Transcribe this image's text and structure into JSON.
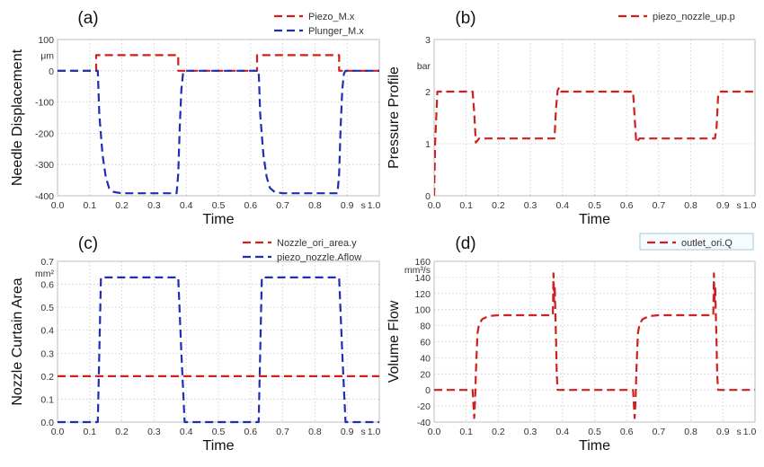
{
  "chart_data": [
    {
      "type": "line",
      "panel_label": "(a)",
      "xlabel": "Time",
      "ylabel": "Needle Displacement",
      "x_unit": "s",
      "y_unit": "μm",
      "xlim": [
        0,
        1
      ],
      "ylim": [
        -400,
        100
      ],
      "xticks": [
        "0.0",
        "0.1",
        "0.2",
        "0.3",
        "0.4",
        "0.5",
        "0.6",
        "0.7",
        "0.8",
        "0.9",
        "1.0"
      ],
      "yticks": [
        "100",
        "0",
        "-100",
        "-200",
        "-300",
        "-400"
      ],
      "ytick_values": [
        100,
        0,
        -100,
        -200,
        -300,
        -400
      ],
      "grid": true,
      "legend_position": "top-right",
      "legend_boxed": false,
      "series": [
        {
          "name": "Piezo_M.x",
          "color": "#d01f1f",
          "x": [
            0,
            0.12,
            0.12,
            0.375,
            0.375,
            0.62,
            0.62,
            0.875,
            0.875,
            1.0
          ],
          "y": [
            0,
            0,
            50,
            50,
            0,
            0,
            50,
            50,
            0,
            0
          ]
        },
        {
          "name": "Plunger_M.x",
          "color": "#1c2fb5",
          "x": [
            0,
            0.125,
            0.13,
            0.14,
            0.15,
            0.16,
            0.175,
            0.2,
            0.37,
            0.375,
            0.38,
            0.385,
            0.39,
            0.395,
            0.4,
            0.625,
            0.63,
            0.64,
            0.65,
            0.66,
            0.675,
            0.7,
            0.87,
            0.875,
            0.88,
            0.885,
            0.89,
            0.895,
            0.9,
            1.0
          ],
          "y": [
            0,
            0,
            -140,
            -270,
            -340,
            -375,
            -388,
            -392,
            -392,
            -330,
            -180,
            -60,
            -10,
            0,
            0,
            0,
            -140,
            -270,
            -340,
            -375,
            -388,
            -392,
            -392,
            -330,
            -180,
            -60,
            -10,
            0,
            0,
            0
          ]
        }
      ]
    },
    {
      "type": "line",
      "panel_label": "(b)",
      "xlabel": "Time",
      "ylabel": "Pressure Profile",
      "x_unit": "s",
      "y_unit": "bar",
      "xlim": [
        0,
        1
      ],
      "ylim": [
        0,
        3
      ],
      "xticks": [
        "0.0",
        "0.1",
        "0.2",
        "0.3",
        "0.4",
        "0.5",
        "0.6",
        "0.7",
        "0.8",
        "0.9",
        "1.0"
      ],
      "yticks": [
        "3",
        "2",
        "1",
        "0"
      ],
      "ytick_values": [
        3,
        2,
        1,
        0
      ],
      "grid": true,
      "legend_position": "top-right",
      "legend_boxed": false,
      "series": [
        {
          "name": "piezo_nozzle_up.p",
          "color": "#d01f1f",
          "x": [
            0,
            0.003,
            0.01,
            0.12,
            0.125,
            0.13,
            0.14,
            0.2,
            0.375,
            0.38,
            0.385,
            0.39,
            0.395,
            0.4,
            0.62,
            0.625,
            0.63,
            0.64,
            0.7,
            0.875,
            0.88,
            0.885,
            0.89,
            1.0
          ],
          "y": [
            0,
            1.0,
            2.0,
            2.0,
            1.6,
            1.02,
            1.1,
            1.1,
            1.1,
            1.7,
            2.02,
            2.08,
            2.0,
            2.0,
            2.0,
            1.5,
            1.02,
            1.1,
            1.1,
            1.1,
            1.3,
            1.9,
            2.0,
            2.0
          ]
        }
      ]
    },
    {
      "type": "line",
      "panel_label": "(c)",
      "xlabel": "Time",
      "ylabel": "Nozzle Curtain Area",
      "x_unit": "s",
      "y_unit": "mm²",
      "xlim": [
        0,
        1
      ],
      "ylim": [
        0,
        0.7
      ],
      "xticks": [
        "0.0",
        "0.1",
        "0.2",
        "0.3",
        "0.4",
        "0.5",
        "0.6",
        "0.7",
        "0.8",
        "0.9",
        "1.0"
      ],
      "yticks": [
        "0.7",
        "0.6",
        "0.5",
        "0.4",
        "0.3",
        "0.2",
        "0.1",
        "0.0"
      ],
      "ytick_values": [
        0.7,
        0.6,
        0.5,
        0.4,
        0.3,
        0.2,
        0.1,
        0.0
      ],
      "grid": true,
      "legend_position": "top-right",
      "legend_boxed": false,
      "series": [
        {
          "name": "Nozzle_ori_area.y",
          "color": "#d01f1f",
          "x": [
            0,
            1.0
          ],
          "y": [
            0.2,
            0.2
          ]
        },
        {
          "name": "piezo_nozzle.Aflow",
          "color": "#1c2fb5",
          "x": [
            0,
            0.125,
            0.135,
            0.375,
            0.385,
            0.395,
            0.625,
            0.635,
            0.875,
            0.885,
            0.895,
            1.0
          ],
          "y": [
            0,
            0,
            0.63,
            0.63,
            0.3,
            0,
            0,
            0.63,
            0.63,
            0.3,
            0,
            0
          ]
        }
      ]
    },
    {
      "type": "line",
      "panel_label": "(d)",
      "xlabel": "Time",
      "ylabel": "Volume Flow",
      "x_unit": "s",
      "y_unit": "mm³/s",
      "xlim": [
        0,
        1
      ],
      "ylim": [
        -40,
        160
      ],
      "xticks": [
        "0.0",
        "0.1",
        "0.2",
        "0.3",
        "0.4",
        "0.5",
        "0.6",
        "0.7",
        "0.8",
        "0.9",
        "1.0"
      ],
      "yticks": [
        "160",
        "140",
        "120",
        "100",
        "80",
        "60",
        "40",
        "20",
        "0",
        "-20",
        "-40"
      ],
      "ytick_values": [
        160,
        140,
        120,
        100,
        80,
        60,
        40,
        20,
        0,
        -20,
        -40
      ],
      "grid": true,
      "legend_position": "top-right",
      "legend_boxed": true,
      "series": [
        {
          "name": "outlet_ori.Q",
          "color": "#d01f1f",
          "x": [
            0,
            0.12,
            0.125,
            0.128,
            0.13,
            0.135,
            0.14,
            0.15,
            0.17,
            0.2,
            0.37,
            0.372,
            0.374,
            0.376,
            0.378,
            0.38,
            0.382,
            0.385,
            0.4,
            0.62,
            0.625,
            0.628,
            0.63,
            0.635,
            0.64,
            0.65,
            0.67,
            0.7,
            0.87,
            0.872,
            0.874,
            0.876,
            0.878,
            0.88,
            0.882,
            0.885,
            0.9,
            1.0
          ],
          "y": [
            0,
            0,
            -35,
            -10,
            20,
            70,
            82,
            88,
            92,
            93,
            93,
            145,
            110,
            130,
            95,
            60,
            20,
            0,
            0,
            0,
            -35,
            -10,
            20,
            70,
            82,
            88,
            92,
            93,
            93,
            145,
            110,
            130,
            95,
            60,
            20,
            0,
            0,
            0
          ]
        }
      ]
    }
  ]
}
